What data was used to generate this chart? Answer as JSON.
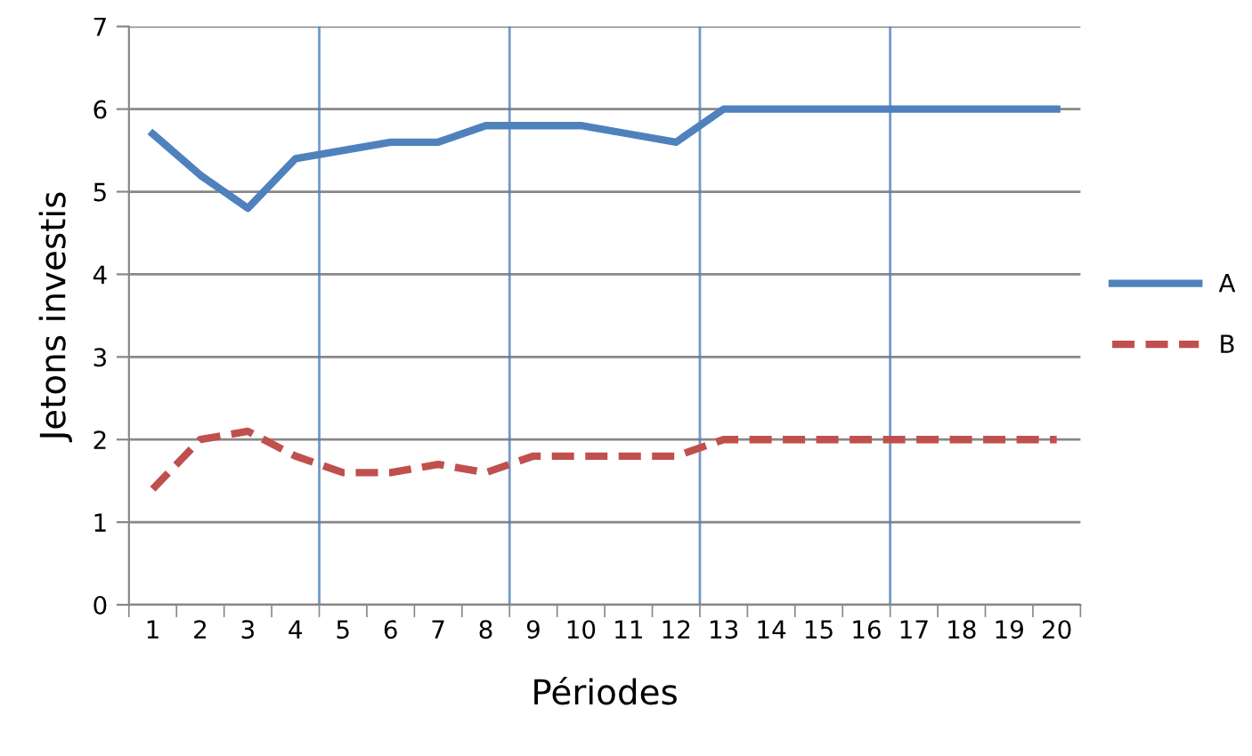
{
  "chart_data": {
    "type": "line",
    "xlabel": "Périodes",
    "ylabel": "Jetons investis",
    "x": [
      1,
      2,
      3,
      4,
      5,
      6,
      7,
      8,
      9,
      10,
      11,
      12,
      13,
      14,
      15,
      16,
      17,
      18,
      19,
      20
    ],
    "xlim": [
      0.5,
      20.5
    ],
    "xticks": [
      1,
      2,
      3,
      4,
      5,
      6,
      7,
      8,
      9,
      10,
      11,
      12,
      13,
      14,
      15,
      16,
      17,
      18,
      19,
      20
    ],
    "ylim": [
      0,
      7
    ],
    "yticks": [
      0,
      1,
      2,
      3,
      4,
      5,
      6,
      7
    ],
    "grid": "y",
    "legend": "right",
    "series": [
      {
        "name": "A",
        "color": "#4f81bd",
        "line_style": "solid",
        "values": [
          5.7,
          5.2,
          4.8,
          5.4,
          5.5,
          5.6,
          5.6,
          5.8,
          5.8,
          5.8,
          5.7,
          5.6,
          6,
          6,
          6,
          6,
          6,
          6,
          6,
          6
        ]
      },
      {
        "name": "B",
        "color": "#c0504d",
        "line_style": "dashed",
        "values": [
          1.4,
          2.0,
          2.1,
          1.8,
          1.6,
          1.6,
          1.7,
          1.6,
          1.8,
          1.8,
          1.8,
          1.8,
          2,
          2,
          2,
          2,
          2,
          2,
          2,
          2
        ]
      }
    ],
    "ref_lines": [
      {
        "axis": "x",
        "value": 4.5,
        "color": "#4f81bd"
      },
      {
        "axis": "x",
        "value": 8.5,
        "color": "#4f81bd"
      },
      {
        "axis": "x",
        "value": 12.5,
        "color": "#4f81bd"
      },
      {
        "axis": "x",
        "value": 16.5,
        "color": "#4f81bd"
      }
    ]
  }
}
